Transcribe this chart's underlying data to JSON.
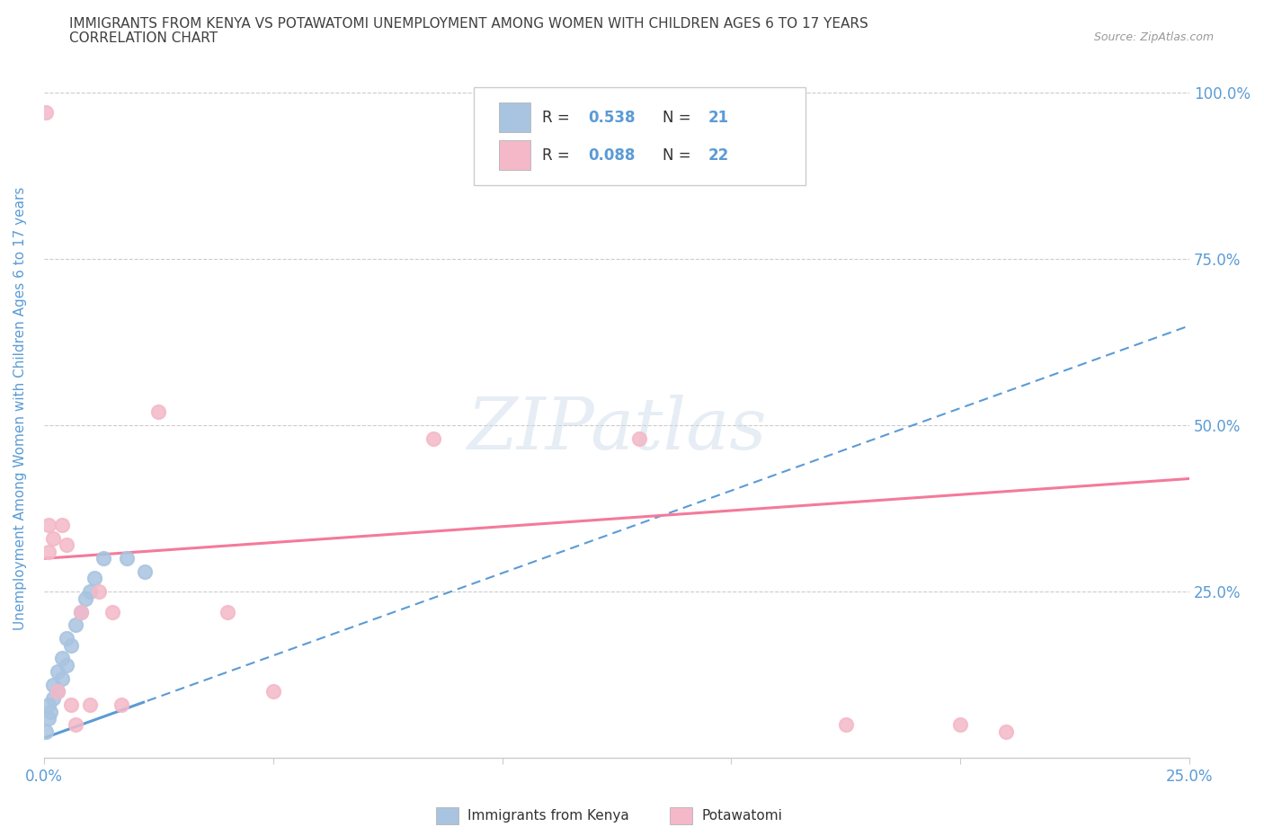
{
  "title_line1": "IMMIGRANTS FROM KENYA VS POTAWATOMI UNEMPLOYMENT AMONG WOMEN WITH CHILDREN AGES 6 TO 17 YEARS",
  "title_line2": "CORRELATION CHART",
  "source": "Source: ZipAtlas.com",
  "ylabel": "Unemployment Among Women with Children Ages 6 to 17 years",
  "xlim": [
    0.0,
    0.25
  ],
  "ylim": [
    0.0,
    1.05
  ],
  "kenya_color": "#a8c4e0",
  "kenya_line_color": "#5b9bd5",
  "potawatomi_color": "#f4b8c8",
  "potawatomi_line_color": "#f47a9a",
  "kenya_R": "0.538",
  "kenya_N": "21",
  "potawatomi_R": "0.088",
  "potawatomi_N": "22",
  "kenya_scatter_x": [
    0.0005,
    0.001,
    0.001,
    0.0015,
    0.002,
    0.002,
    0.003,
    0.003,
    0.004,
    0.004,
    0.005,
    0.005,
    0.006,
    0.007,
    0.008,
    0.009,
    0.01,
    0.011,
    0.013,
    0.018,
    0.022
  ],
  "kenya_scatter_y": [
    0.04,
    0.06,
    0.08,
    0.07,
    0.09,
    0.11,
    0.1,
    0.13,
    0.12,
    0.15,
    0.14,
    0.18,
    0.17,
    0.2,
    0.22,
    0.24,
    0.25,
    0.27,
    0.3,
    0.3,
    0.28
  ],
  "potawatomi_scatter_x": [
    0.0005,
    0.001,
    0.001,
    0.002,
    0.003,
    0.004,
    0.005,
    0.006,
    0.007,
    0.008,
    0.01,
    0.012,
    0.015,
    0.017,
    0.025,
    0.04,
    0.05,
    0.085,
    0.13,
    0.175,
    0.2,
    0.21
  ],
  "potawatomi_scatter_y": [
    0.97,
    0.31,
    0.35,
    0.33,
    0.1,
    0.35,
    0.32,
    0.08,
    0.05,
    0.22,
    0.08,
    0.25,
    0.22,
    0.08,
    0.52,
    0.22,
    0.1,
    0.48,
    0.48,
    0.05,
    0.05,
    0.04
  ],
  "background_color": "#ffffff",
  "grid_color": "#cccccc",
  "tick_label_color": "#5b9bd5",
  "axis_label_color": "#5b9bd5",
  "title_color": "#404040",
  "legend_value_color": "#5b9bd5"
}
